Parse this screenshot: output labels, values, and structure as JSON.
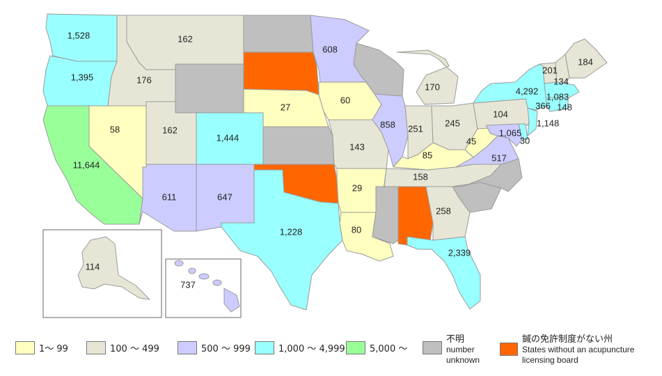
{
  "colors": {
    "c1_99": "#ffffc0",
    "c100_499": "#e7e6d6",
    "c500_999": "#ccccff",
    "c1000_4999": "#99ffff",
    "c5000": "#99ff99",
    "unknown": "#bfbfbf",
    "no_board": "#ff6600"
  },
  "states": {
    "WA": "1,528",
    "OR": "1,395",
    "CA": "11,644",
    "NV": "58",
    "ID": "176",
    "MT": "162",
    "UT": "162",
    "AZ": "611",
    "NM": "647",
    "CO": "1,444",
    "NE": "27",
    "IA": "60",
    "MN": "608",
    "MO": "143",
    "AR": "29",
    "LA": "80",
    "TX": "1,228",
    "IL": "858",
    "IN": "251",
    "MI": "170",
    "OH": "245",
    "KY": "85",
    "TN": "158",
    "WV": "45",
    "VA": "517",
    "GA": "258",
    "FL": "2,339",
    "PA": "104",
    "NY": "4,292",
    "VT": "201",
    "NH": "134",
    "ME": "184",
    "MA": "1,083",
    "CT": "366",
    "RI": "148",
    "NJ": "1,148",
    "MD": "1,065",
    "DE": "30",
    "AK": "114",
    "HI": "737"
  },
  "legend": [
    {
      "key": "c1_99",
      "label": "1～ 99"
    },
    {
      "key": "c100_499",
      "label": "100 ～ 499"
    },
    {
      "key": "c500_999",
      "label": "500 ～ 999"
    },
    {
      "key": "c1000_4999",
      "label": "1,000 ～ 4,999"
    },
    {
      "key": "c5000",
      "label": "5,000 ～"
    },
    {
      "key": "unknown",
      "label_jp": "不明",
      "label_en1": "number",
      "label_en2": "unknown"
    },
    {
      "key": "no_board",
      "label_jp": "鍼の免許制度がない州",
      "label_en1": "States without an acupuncture",
      "label_en2": "licensing board"
    }
  ]
}
